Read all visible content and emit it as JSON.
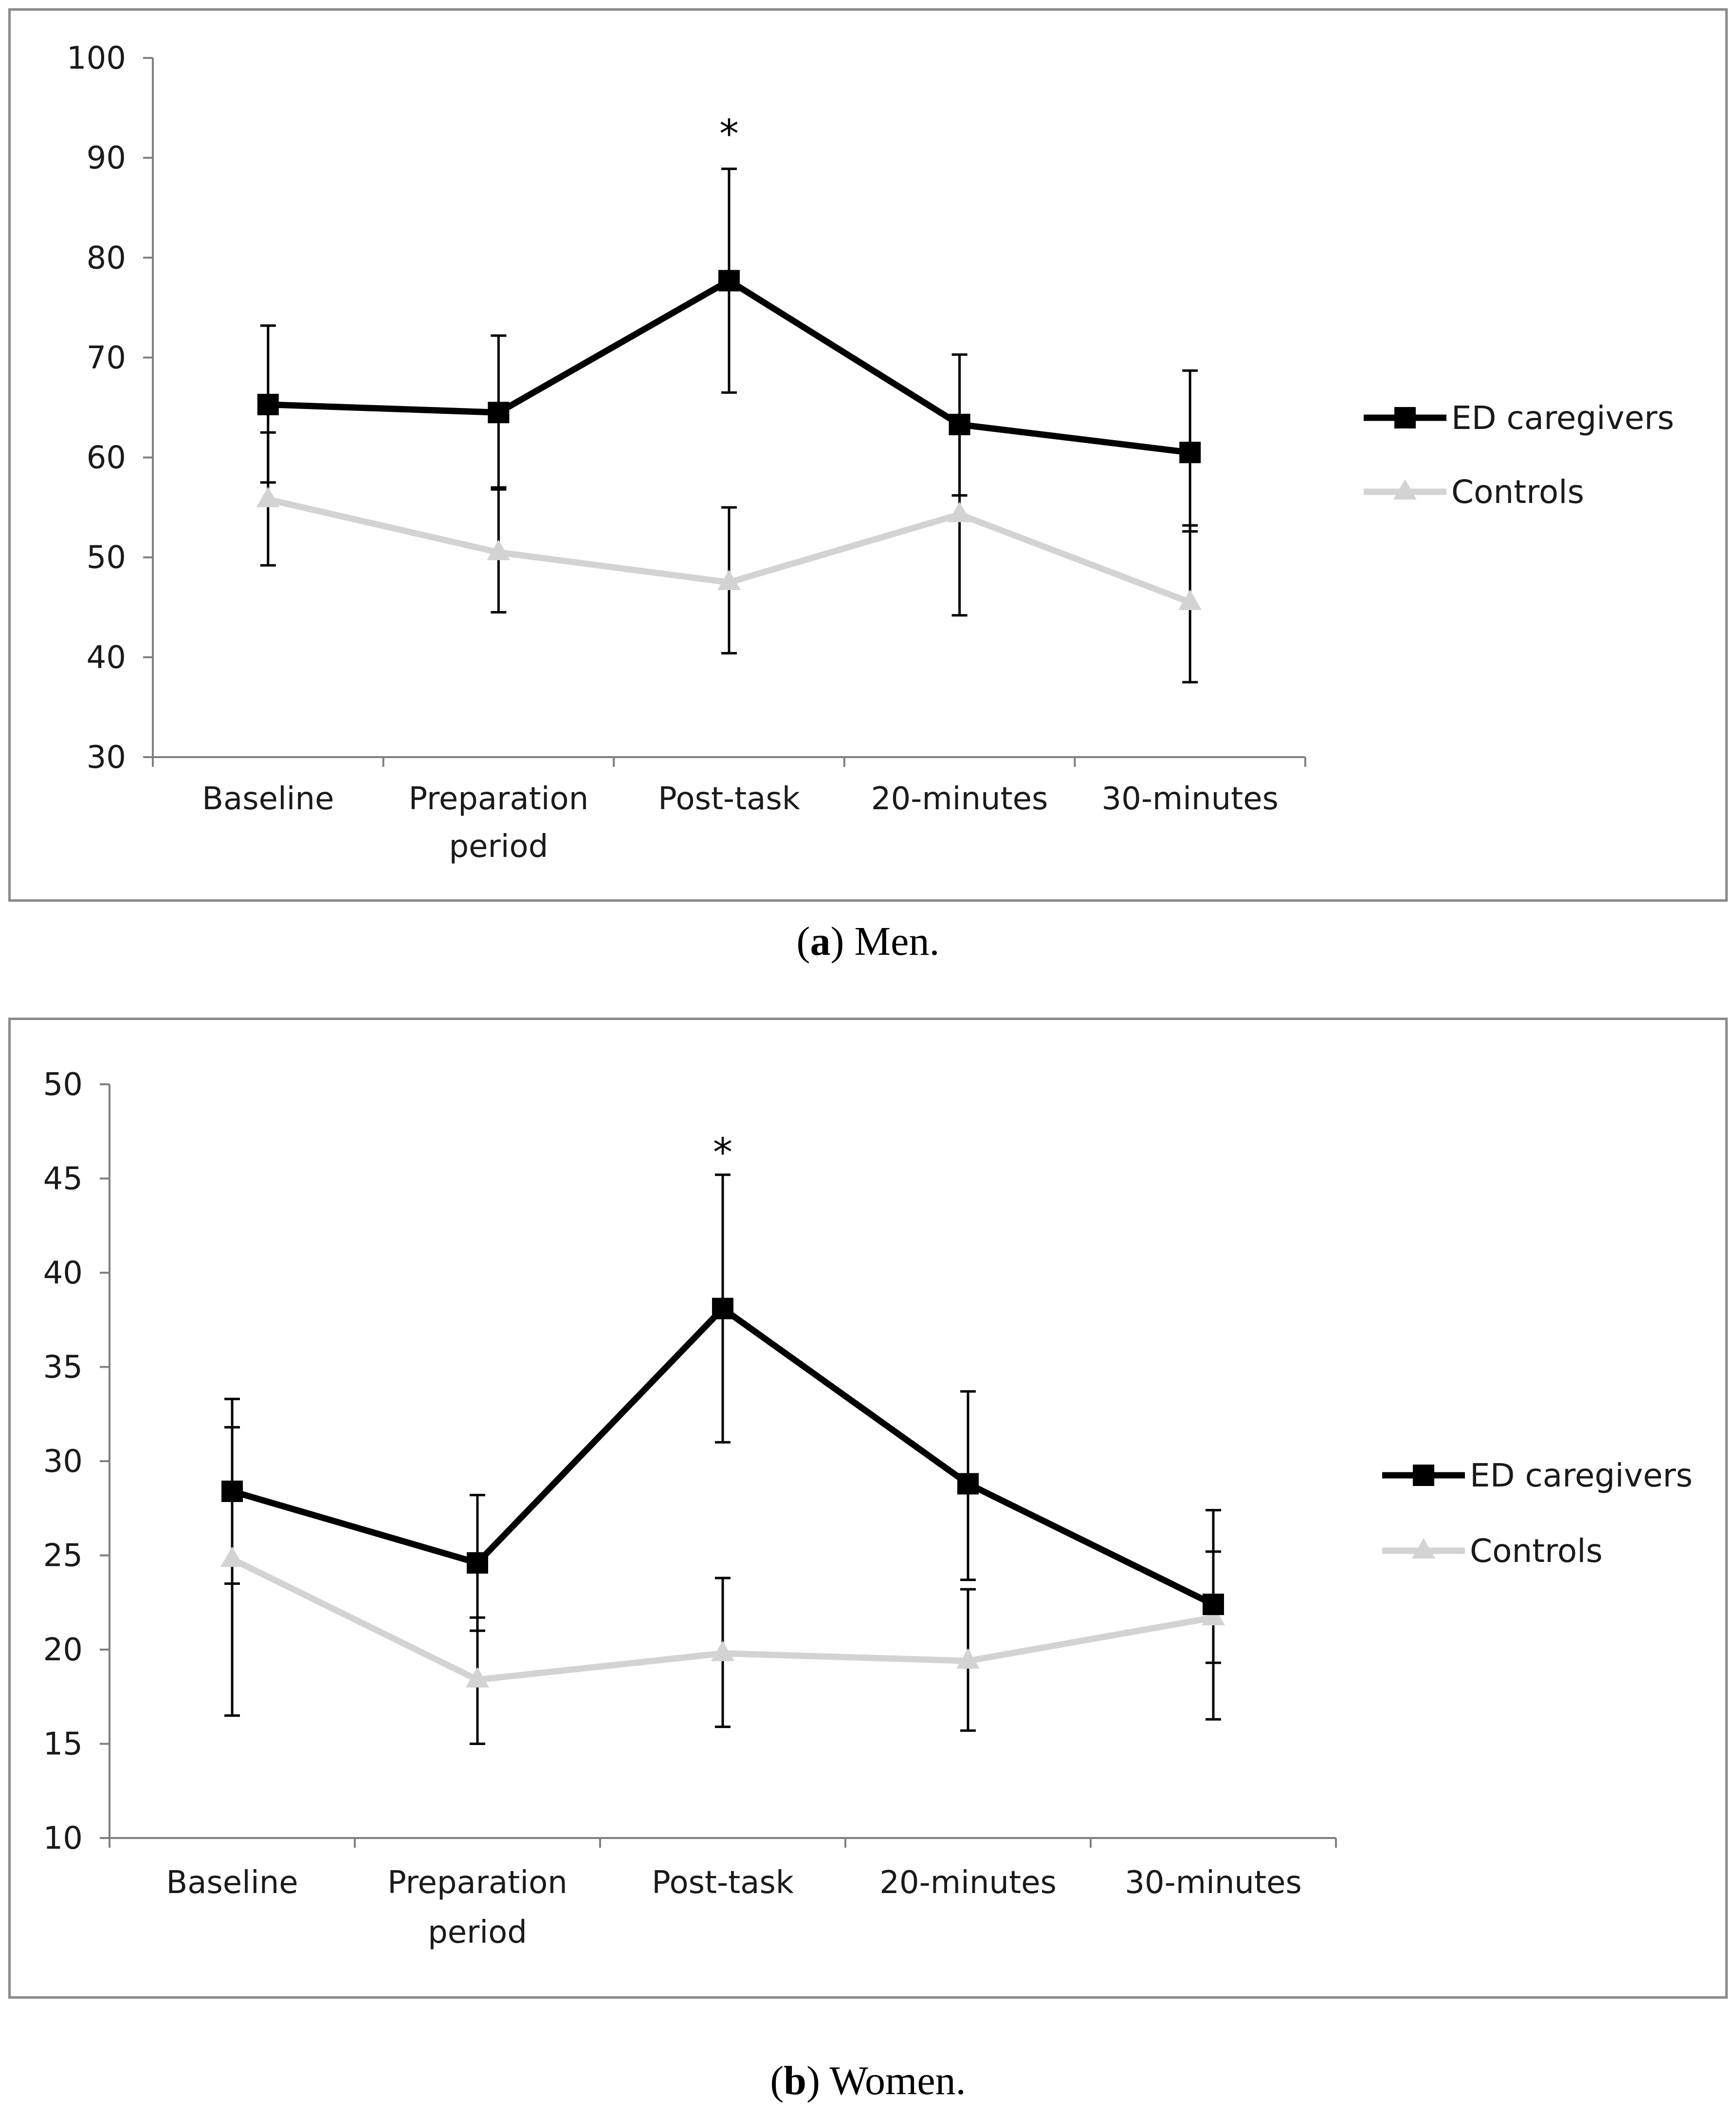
{
  "chart_data": [
    {
      "type": "line",
      "panel_label": "a",
      "caption_text": "Men.",
      "title": "",
      "xlabel": "",
      "ylabel": "",
      "categories": [
        "Baseline",
        "Preparation period",
        "Post-task",
        "20-minutes",
        "30-minutes"
      ],
      "category_lines": [
        [
          "Baseline"
        ],
        [
          "Preparation",
          "period"
        ],
        [
          "Post-task"
        ],
        [
          "20-minutes"
        ],
        [
          "30-minutes"
        ]
      ],
      "ylim": [
        30,
        100
      ],
      "yticks": [
        30,
        40,
        50,
        60,
        70,
        80,
        90,
        100
      ],
      "significance": [
        {
          "category": "Post-task",
          "symbol": "*",
          "y": 93
        }
      ],
      "series": [
        {
          "name": "ED caregivers",
          "color": "#000000",
          "marker": "square",
          "values": [
            65.3,
            64.5,
            77.7,
            63.3,
            60.5
          ],
          "error_upper": [
            73.2,
            72.2,
            88.9,
            70.3,
            68.7
          ],
          "error_lower": [
            57.5,
            56.8,
            66.5,
            56.2,
            52.6
          ]
        },
        {
          "name": "Controls",
          "color": "#d3d3d3",
          "marker": "triangle",
          "values": [
            55.8,
            50.5,
            47.5,
            54.3,
            45.5
          ],
          "error_upper": [
            62.5,
            57.0,
            55.0,
            63.2,
            53.2
          ],
          "error_lower": [
            49.2,
            44.5,
            40.4,
            44.2,
            37.5
          ]
        }
      ]
    },
    {
      "type": "line",
      "panel_label": "b",
      "caption_text": "Women.",
      "title": "",
      "xlabel": "",
      "ylabel": "",
      "categories": [
        "Baseline",
        "Preparation period",
        "Post-task",
        "20-minutes",
        "30-minutes"
      ],
      "category_lines": [
        [
          "Baseline"
        ],
        [
          "Preparation",
          "period"
        ],
        [
          "Post-task"
        ],
        [
          "20-minutes"
        ],
        [
          "30-minutes"
        ]
      ],
      "ylim": [
        10,
        50
      ],
      "yticks": [
        10,
        15,
        20,
        25,
        30,
        35,
        40,
        45,
        50
      ],
      "significance": [
        {
          "category": "Post-task",
          "symbol": "*",
          "y": 46.7
        }
      ],
      "series": [
        {
          "name": "ED caregivers",
          "color": "#000000",
          "marker": "square",
          "values": [
            28.4,
            24.6,
            38.1,
            28.8,
            22.4
          ],
          "error_upper": [
            33.3,
            28.2,
            45.2,
            33.7,
            27.4
          ],
          "error_lower": [
            23.5,
            21.0,
            31.0,
            23.7,
            19.3
          ]
        },
        {
          "name": "Controls",
          "color": "#d3d3d3",
          "marker": "triangle",
          "values": [
            24.8,
            18.4,
            19.8,
            19.4,
            21.7
          ],
          "error_upper": [
            31.8,
            21.7,
            23.8,
            23.2,
            25.2
          ],
          "error_lower": [
            16.5,
            15.0,
            15.9,
            15.7,
            16.3
          ]
        }
      ]
    }
  ]
}
